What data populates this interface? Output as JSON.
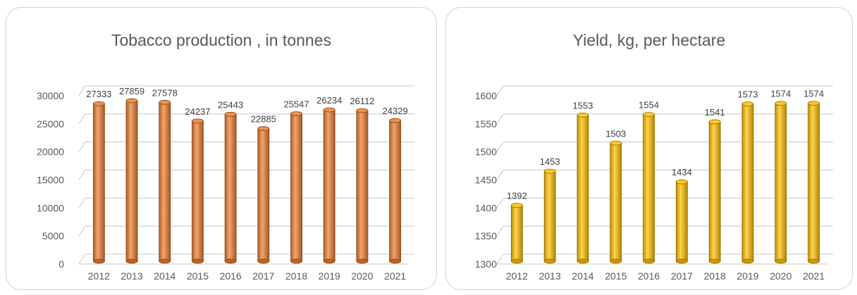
{
  "chart_data": [
    {
      "type": "bar",
      "title": "Tobacco production , in tonnes",
      "categories": [
        "2012",
        "2013",
        "2014",
        "2015",
        "2016",
        "2017",
        "2018",
        "2019",
        "2020",
        "2021"
      ],
      "values": [
        27333,
        27859,
        27578,
        24237,
        25443,
        22885,
        25547,
        26234,
        26112,
        24329
      ],
      "data_labels": [
        "27333",
        "27859",
        "27578",
        "24237",
        "25443",
        "22885",
        "25547",
        "26234",
        "26112",
        "24329"
      ],
      "yticks": [
        "0",
        "5000",
        "10000",
        "15000",
        "20000",
        "25000",
        "30000"
      ],
      "ylim": [
        0,
        30000
      ],
      "xlabel": "",
      "ylabel": "",
      "grid": true,
      "color": "#ed7d31"
    },
    {
      "type": "bar",
      "title": "Yield, kg, per hectare",
      "categories": [
        "2012",
        "2013",
        "2014",
        "2015",
        "2016",
        "2017",
        "2018",
        "2019",
        "2020",
        "2021"
      ],
      "values": [
        1392,
        1453,
        1553,
        1503,
        1554,
        1434,
        1541,
        1573,
        1574,
        1574
      ],
      "data_labels": [
        "1392",
        "1453",
        "1553",
        "1503",
        "1554",
        "1434",
        "1541",
        "1573",
        "1574",
        "1574"
      ],
      "yticks": [
        "1300",
        "1350",
        "1400",
        "1450",
        "1500",
        "1550",
        "1600"
      ],
      "ylim": [
        1300,
        1600
      ],
      "xlabel": "",
      "ylabel": "",
      "grid": true,
      "color": "#ffc000"
    }
  ]
}
